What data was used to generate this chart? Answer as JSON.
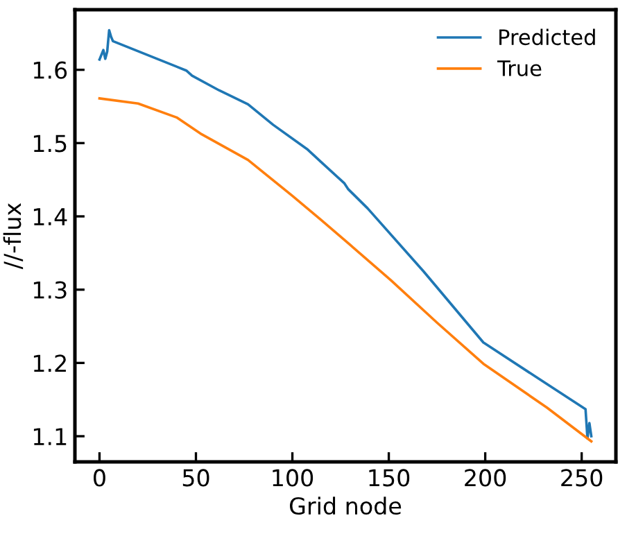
{
  "chart_data": {
    "type": "line",
    "xlabel": "Grid node",
    "ylabel": "//-flux",
    "xlim": [
      -12.75,
      267.75
    ],
    "xticks": [
      0,
      50,
      100,
      150,
      200,
      250
    ],
    "ylim": [
      1.065,
      1.682
    ],
    "yticks": [
      1.1,
      1.2,
      1.3,
      1.4,
      1.5,
      1.6
    ],
    "legend": "top right",
    "grid": false,
    "series": [
      {
        "name": "Predicted",
        "color": "#1f77b4",
        "x": [
          0,
          2,
          3,
          4,
          5,
          6,
          7,
          45,
          48,
          62,
          77,
          90,
          108,
          115,
          127,
          129,
          139,
          168,
          199,
          228,
          252,
          253,
          254,
          255
        ],
        "values": [
          1.614,
          1.627,
          1.615,
          1.625,
          1.654,
          1.645,
          1.639,
          1.599,
          1.592,
          1.572,
          1.553,
          1.525,
          1.491,
          1.474,
          1.445,
          1.437,
          1.411,
          1.325,
          1.228,
          1.178,
          1.137,
          1.097,
          1.118,
          1.1
        ]
      },
      {
        "name": "True",
        "color": "#ff7f0e",
        "x": [
          0,
          20,
          40,
          53,
          77,
          100,
          115,
          130,
          151,
          175,
          199,
          232,
          255
        ],
        "values": [
          1.561,
          1.554,
          1.535,
          1.512,
          1.477,
          1.428,
          1.395,
          1.361,
          1.313,
          1.255,
          1.199,
          1.139,
          1.093
        ]
      }
    ]
  }
}
